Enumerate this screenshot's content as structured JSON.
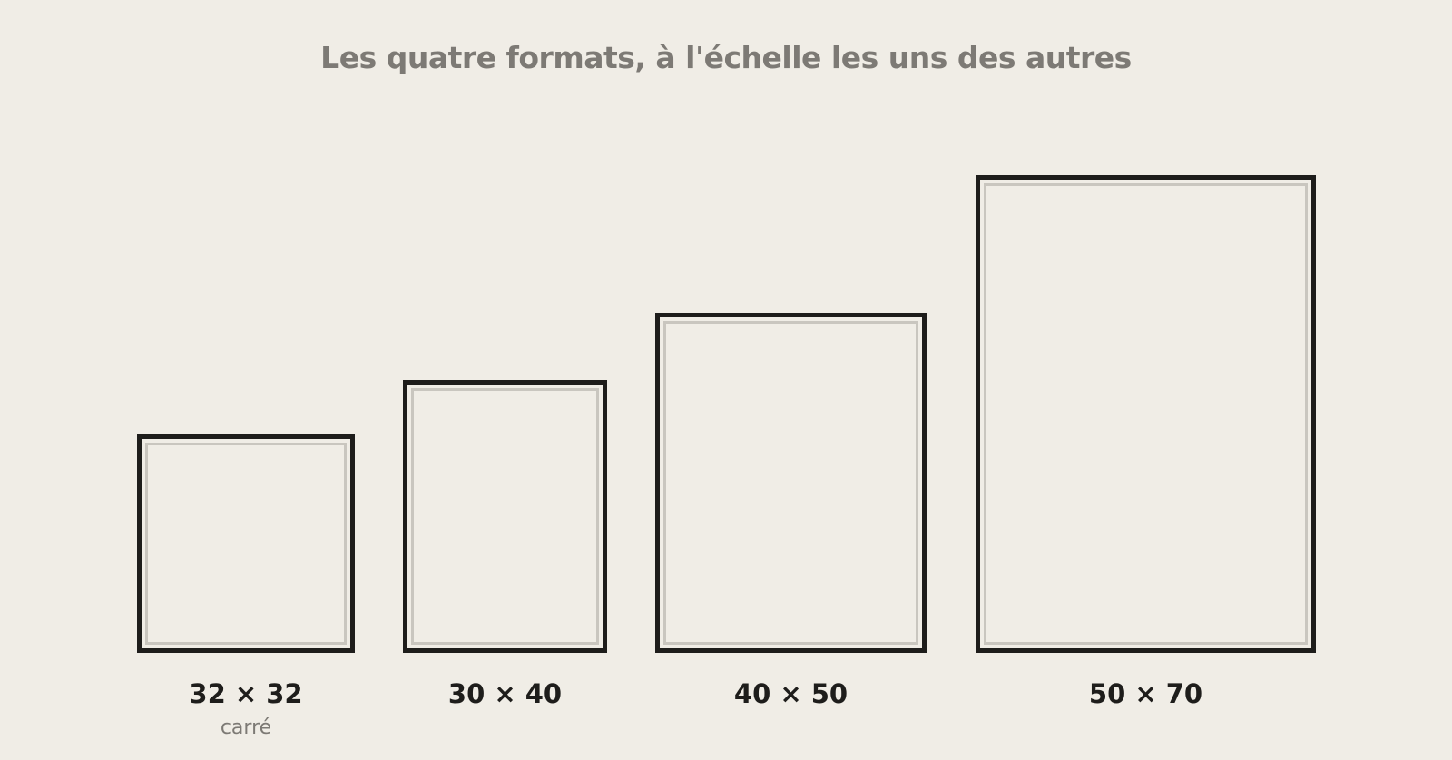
{
  "title": "Les quatre formats, à l'échelle les uns des autres",
  "formats": [
    {
      "label": "32 × 32",
      "note": "carré"
    },
    {
      "label": "30 × 40"
    },
    {
      "label": "40 × 50"
    },
    {
      "label": "50 × 70"
    }
  ]
}
